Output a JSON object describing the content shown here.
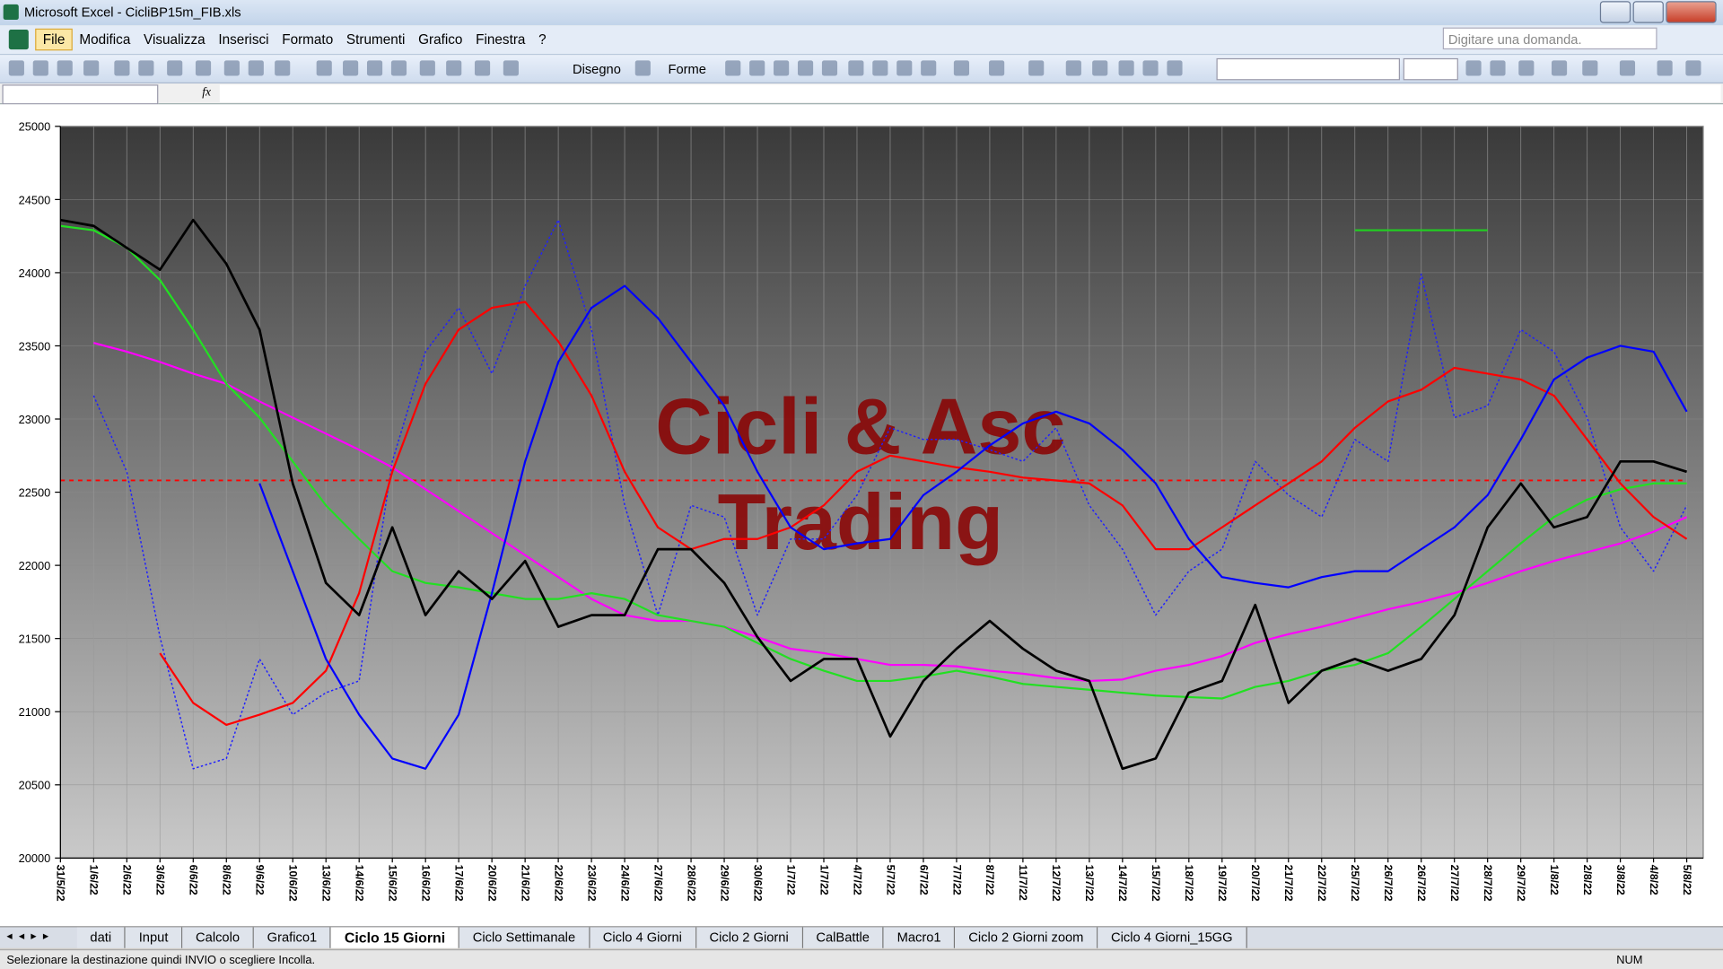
{
  "window": {
    "title": "Microsoft Excel - CicliBP15m_FIB.xls"
  },
  "menu": [
    "File",
    "Modifica",
    "Visualizza",
    "Inserisci",
    "Formato",
    "Strumenti",
    "Grafico",
    "Finestra",
    "?"
  ],
  "help_box": "Digitare una domanda.",
  "toolbar": {
    "draw": "Disegno",
    "shapes": "Forme"
  },
  "formula_bar": {
    "function_label": "fx"
  },
  "chart_data": {
    "type": "line",
    "categories": [
      "31/5/22",
      "1/6/22",
      "2/6/22",
      "3/6/22",
      "6/6/22",
      "8/6/22",
      "9/6/22",
      "10/6/22",
      "13/6/22",
      "14/6/22",
      "15/6/22",
      "16/6/22",
      "17/6/22",
      "20/6/22",
      "21/6/22",
      "22/6/22",
      "23/6/22",
      "24/6/22",
      "27/6/22",
      "28/6/22",
      "29/6/22",
      "30/6/22",
      "1/7/22",
      "1/7/22",
      "4/7/22",
      "5/7/22",
      "6/7/22",
      "7/7/22",
      "8/7/22",
      "11/7/22",
      "12/7/22",
      "13/7/22",
      "14/7/22",
      "15/7/22",
      "18/7/22",
      "19/7/22",
      "20/7/22",
      "21/7/22",
      "22/7/22",
      "25/7/22",
      "26/7/22",
      "26/7/22",
      "27/7/22",
      "28/7/22",
      "29/7/22",
      "1/8/22",
      "2/8/22",
      "3/8/22",
      "4/8/22",
      "5/8/22"
    ],
    "ylim": [
      20000,
      25000
    ],
    "yticks": [
      20000,
      20500,
      21000,
      21500,
      22000,
      22500,
      23000,
      23500,
      24000,
      24500,
      25000
    ],
    "grid": true,
    "series": [
      {
        "color": "#ff0000",
        "line_style": "dashed",
        "line_width": 1.5,
        "values": [
          22580,
          22580,
          22580,
          22580,
          22580,
          22580,
          22580,
          22580,
          22580,
          22580,
          22580,
          22580,
          22580,
          22580,
          22580,
          22580,
          22580,
          22580,
          22580,
          22580,
          22580,
          22580,
          22580,
          22580,
          22580,
          22580,
          22580,
          22580,
          22580,
          22580,
          22580,
          22580,
          22580,
          22580,
          22580,
          22580,
          22580,
          22580,
          22580,
          22580,
          22580,
          22580,
          22580,
          22580,
          22580,
          22580,
          22580,
          22580,
          22580,
          22580
        ]
      },
      {
        "color": "#2020ff",
        "line_style": "dotted",
        "line_width": 1.2,
        "values": [
          null,
          23160,
          22640,
          21510,
          20610,
          20680,
          21360,
          20980,
          21130,
          21210,
          22710,
          23460,
          23760,
          23310,
          23910,
          24360,
          23610,
          22410,
          21660,
          22410,
          22330,
          21660,
          22180,
          22180,
          22480,
          22940,
          22860,
          22860,
          22790,
          22710,
          22940,
          22410,
          22110,
          21660,
          21960,
          22110,
          22710,
          22480,
          22330,
          22860,
          22710,
          23990,
          23010,
          23090,
          23610,
          23460,
          23010,
          22260,
          21960,
          22410
        ]
      },
      {
        "color": "#ff00ff",
        "line_style": "solid",
        "line_width": 1.8,
        "values": [
          null,
          23520,
          23460,
          23390,
          23310,
          23240,
          23120,
          23010,
          22900,
          22790,
          22670,
          22520,
          22370,
          22220,
          22070,
          21920,
          21770,
          21660,
          21620,
          21620,
          21580,
          21510,
          21430,
          21400,
          21360,
          21320,
          21320,
          21310,
          21280,
          21260,
          21230,
          21210,
          21220,
          21280,
          21320,
          21380,
          21470,
          21530,
          21580,
          21640,
          21700,
          21750,
          21810,
          21880,
          21960,
          22030,
          22090,
          22150,
          22230,
          22330
        ]
      },
      {
        "color": "#22e022",
        "line_style": "solid",
        "line_width": 1.8,
        "values": [
          24320,
          24290,
          24170,
          23950,
          23610,
          23240,
          23010,
          22710,
          22410,
          22180,
          21960,
          21880,
          21850,
          21810,
          21770,
          21770,
          21810,
          21770,
          21660,
          21620,
          21580,
          21470,
          21360,
          21280,
          21210,
          21210,
          21240,
          21280,
          21240,
          21190,
          21170,
          21150,
          21130,
          21110,
          21100,
          21090,
          21170,
          21210,
          21280,
          21320,
          21400,
          21580,
          21770,
          21960,
          22150,
          22330,
          22450,
          22520,
          22560,
          22560
        ]
      },
      {
        "color": "#ff0000",
        "line_style": "solid",
        "line_width": 1.8,
        "values": [
          null,
          null,
          null,
          21400,
          21060,
          20910,
          20980,
          21060,
          21280,
          21810,
          22640,
          23240,
          23610,
          23760,
          23800,
          23530,
          23160,
          22640,
          22260,
          22110,
          22180,
          22180,
          22260,
          22410,
          22640,
          22750,
          22710,
          22670,
          22640,
          22600,
          22580,
          22560,
          22410,
          22110,
          22110,
          22260,
          22410,
          22560,
          22710,
          22940,
          23120,
          23200,
          23350,
          23310,
          23270,
          23160,
          22860,
          22560,
          22330,
          22180
        ]
      },
      {
        "color": "#0000ff",
        "line_style": "solid",
        "line_width": 1.8,
        "values": [
          null,
          null,
          null,
          null,
          null,
          null,
          22560,
          21960,
          21360,
          20980,
          20680,
          20610,
          20980,
          21810,
          22710,
          23390,
          23760,
          23910,
          23690,
          23390,
          23090,
          22640,
          22260,
          22110,
          22150,
          22180,
          22480,
          22640,
          22820,
          22970,
          23050,
          22970,
          22790,
          22560,
          22180,
          21920,
          21880,
          21850,
          21920,
          21960,
          21960,
          22110,
          22260,
          22480,
          22860,
          23270,
          23420,
          23500,
          23460,
          23050
        ]
      },
      {
        "color": "#22cc22",
        "line_style": "solid",
        "line_width": 1.8,
        "values": [
          null,
          null,
          null,
          null,
          null,
          null,
          null,
          null,
          null,
          null,
          null,
          null,
          null,
          null,
          null,
          null,
          null,
          null,
          null,
          null,
          null,
          null,
          null,
          null,
          null,
          null,
          null,
          null,
          null,
          null,
          null,
          null,
          null,
          null,
          null,
          null,
          null,
          null,
          null,
          24290,
          24290,
          24290,
          24290,
          24290,
          null,
          null,
          null,
          null,
          null,
          null
        ]
      },
      {
        "color": "#000000",
        "line_style": "solid",
        "line_width": 2.2,
        "values": [
          24360,
          24320,
          24170,
          24020,
          24360,
          24060,
          23610,
          22560,
          21880,
          21660,
          22260,
          21660,
          21960,
          21770,
          22030,
          21580,
          21660,
          21660,
          22110,
          22110,
          21880,
          21510,
          21210,
          21360,
          21360,
          20830,
          21210,
          21430,
          21620,
          21430,
          21280,
          21210,
          20610,
          20680,
          21130,
          21210,
          21730,
          21060,
          21280,
          21360,
          21280,
          21360,
          21660,
          22260,
          22560,
          22260,
          22330,
          22710,
          22710,
          22640
        ]
      }
    ],
    "annotations": [
      "Cicli & Asc",
      "Trading"
    ],
    "annotation_color": "#8b0000"
  },
  "sheet_tabs": {
    "tabs": [
      "dati",
      "Input",
      "Calcolo",
      "Grafico1",
      "Ciclo 15 Giorni",
      "Ciclo Settimanale",
      "Ciclo 4 Giorni",
      "Ciclo 2 Giorni",
      "CalBattle",
      "Macro1",
      "Ciclo 2 Giorni zoom",
      "Ciclo 4 Giorni_15GG"
    ],
    "active": 4
  },
  "status_bar": {
    "message": "Selezionare la destinazione quindi INVIO o scegliere Incolla.",
    "mode": "NUM"
  }
}
